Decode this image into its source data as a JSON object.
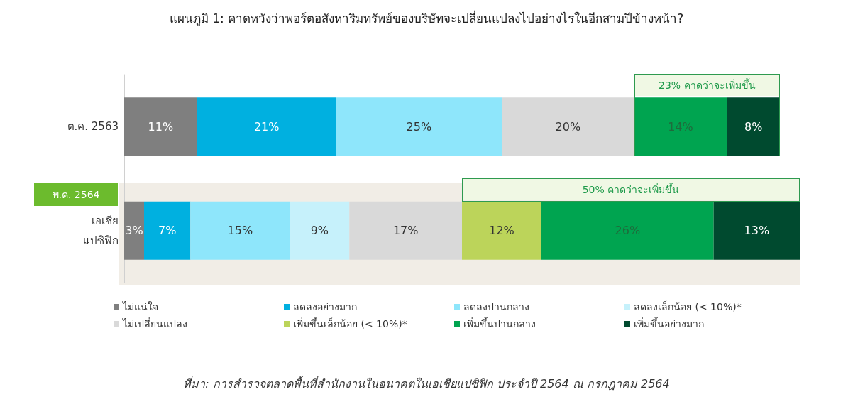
{
  "chart_data": {
    "type": "bar",
    "orientation": "horizontal",
    "stacked": true,
    "legend": "bottom",
    "title": "แผนภูมิ 1: คาดหวังว่าพอร์ตอสังหาริมทรัพย์ของบริษัทจะเปลี่ยนแปลงไปอย่างไรในอีกสามปีข้างหน้า?",
    "categories": [
      "ต.ค. 2563",
      "เอเชีย แปซิฟิก"
    ],
    "series": [
      {
        "name": "ไม่แน่ใจ",
        "color": "#7f7f7f",
        "values": [
          11,
          3
        ],
        "value_labels": [
          "11%",
          "3%"
        ]
      },
      {
        "name": "ลดลงอย่างมาก",
        "color": "#00b0e0",
        "values": [
          21,
          7
        ],
        "value_labels": [
          "21%",
          "7%"
        ]
      },
      {
        "name": "ลดลงปานกลาง",
        "color": "#8ee6fb",
        "values": [
          25,
          15
        ],
        "value_labels": [
          "25%",
          "15%"
        ]
      },
      {
        "name": "ลดลงเล็กน้อย (< 10%)*",
        "color": "#c6f1fb",
        "values": [
          null,
          9
        ],
        "value_labels": [
          null,
          "9%"
        ]
      },
      {
        "name": "ไม่เปลี่ยนแปลง",
        "color": "#d9d9d9",
        "values": [
          20,
          17
        ],
        "value_labels": [
          "20%",
          "17%"
        ]
      },
      {
        "name": "เพิ่มขึ้นเล็กน้อย (< 10%)*",
        "color": "#bcd45a",
        "values": [
          null,
          12
        ],
        "value_labels": [
          null,
          "12%"
        ]
      },
      {
        "name": "เพิ่มขึ้นปานกลาง",
        "color": "#00a450",
        "values": [
          14,
          26
        ],
        "value_labels": [
          "14%",
          "26%"
        ]
      },
      {
        "name": "เพิ่มขึ้นอย่างมาก",
        "color": "#004a2f",
        "values": [
          8,
          13
        ],
        "value_labels": [
          "8%",
          "13%"
        ]
      }
    ],
    "annotations": [
      "23% คาดว่าจะเพิ่มขึ้น",
      "พ.ค. 2564",
      "50% คาดว่าจะเพิ่มขึ้น",
      "ที่มา: การสำรวจตลาดพื้นที่สำนักงานในอนาคตในเอเชียแปซิฟิก ประจำปี 2564 ณ กรกฎาคม 2564"
    ]
  }
}
